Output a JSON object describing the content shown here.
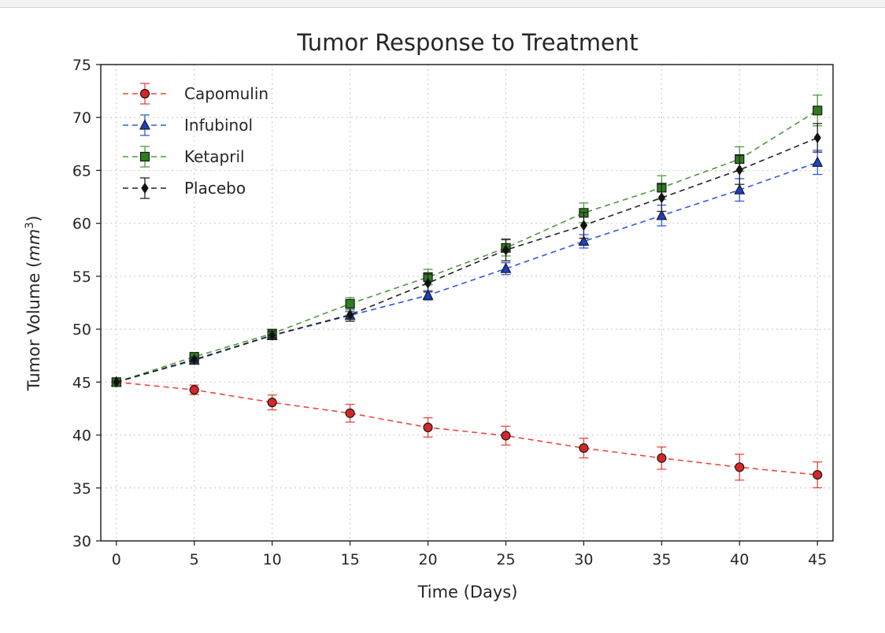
{
  "chart_data": {
    "type": "line",
    "title": "Tumor Response to Treatment",
    "xlabel": "Time (Days)",
    "ylabel_prefix": "Tumor Volume (",
    "ylabel_unit_base": "mm",
    "ylabel_unit_exp": "3",
    "ylabel_suffix": ")",
    "xlim": [
      -1,
      46
    ],
    "ylim": [
      30,
      75
    ],
    "x_ticks": [
      0,
      5,
      10,
      15,
      20,
      25,
      30,
      35,
      40,
      45
    ],
    "y_ticks": [
      30,
      35,
      40,
      45,
      50,
      55,
      60,
      65,
      70,
      75
    ],
    "x": [
      0,
      5,
      10,
      15,
      20,
      25,
      30,
      35,
      40,
      45
    ],
    "grid": true,
    "legend_position": "upper left",
    "series": [
      {
        "name": "Capomulin",
        "marker": "circle",
        "color": "#e8493a",
        "fill": "#d62728",
        "values": [
          45.0,
          44.27,
          43.08,
          42.06,
          40.72,
          39.94,
          38.77,
          37.82,
          36.96,
          36.24
        ],
        "errors": [
          0.0,
          0.45,
          0.7,
          0.84,
          0.91,
          0.89,
          0.93,
          1.05,
          1.22,
          1.22
        ]
      },
      {
        "name": "Infubinol",
        "marker": "triangle",
        "color": "#2d5be8",
        "fill": "#1f3fbf",
        "values": [
          45.0,
          47.06,
          49.4,
          51.3,
          53.2,
          55.72,
          58.3,
          60.74,
          63.16,
          65.76
        ],
        "errors": [
          0.0,
          0.24,
          0.28,
          0.36,
          0.44,
          0.56,
          0.63,
          0.98,
          1.06,
          1.14
        ]
      },
      {
        "name": "Ketapril",
        "marker": "square",
        "color": "#4e9a3c",
        "fill": "#2e7d1e",
        "values": [
          45.0,
          47.39,
          49.58,
          52.4,
          54.92,
          57.68,
          60.99,
          63.37,
          66.07,
          70.66
        ],
        "errors": [
          0.0,
          0.26,
          0.36,
          0.58,
          0.73,
          0.76,
          0.93,
          1.13,
          1.16,
          1.45
        ]
      },
      {
        "name": "Placebo",
        "marker": "diamond",
        "color": "#222222",
        "fill": "#111111",
        "values": [
          45.0,
          47.13,
          49.42,
          51.36,
          54.36,
          57.48,
          59.81,
          62.42,
          65.05,
          68.08
        ],
        "errors": [
          0.0,
          0.22,
          0.4,
          0.61,
          0.84,
          1.03,
          1.22,
          1.29,
          1.37,
          1.35
        ]
      }
    ]
  }
}
